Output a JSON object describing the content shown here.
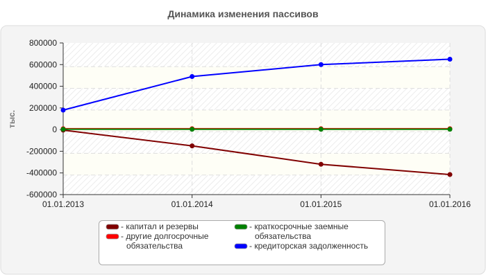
{
  "chart_data": {
    "type": "line",
    "title": "Динамика изменения пассивов",
    "xlabel": "",
    "ylabel": "тыс.",
    "ylim": [
      -600000,
      800000
    ],
    "yticks": [
      "800000",
      "600000",
      "400000",
      "200000",
      "0",
      "-200000",
      "-400000",
      "-600000"
    ],
    "ytick_values": [
      800000,
      600000,
      400000,
      200000,
      0,
      -200000,
      -400000,
      -600000
    ],
    "categories": [
      "01.01.2013",
      "01.01.2014",
      "01.01.2015",
      "01.01.2016"
    ],
    "grid": true,
    "legend_position": "bottom",
    "series": [
      {
        "name": "капитал и резервы",
        "color": "#800000",
        "values": [
          -5000,
          -150000,
          -320000,
          -415000
        ]
      },
      {
        "name": "другие долгосрочные обязательства",
        "color": "#ff0000",
        "values": [
          8000,
          8000,
          8000,
          8000
        ]
      },
      {
        "name": "краткосрочные заемные обязательства",
        "color": "#008000",
        "values": [
          3000,
          3000,
          3000,
          3000
        ]
      },
      {
        "name": "кредиторская задолженность",
        "color": "#0000ff",
        "values": [
          180000,
          490000,
          600000,
          650000
        ]
      }
    ]
  },
  "legend": {
    "items": [
      {
        "lines": [
          "- капитал и резервы"
        ],
        "color": "#800000"
      },
      {
        "lines": [
          "- другие долгосрочные",
          "обязательства"
        ],
        "color": "#ff0000"
      },
      {
        "lines": [
          "- краткосрочные заемные",
          "обязательства"
        ],
        "color": "#008000"
      },
      {
        "lines": [
          "- кредиторская задолженность"
        ],
        "color": "#0000ff"
      }
    ]
  }
}
